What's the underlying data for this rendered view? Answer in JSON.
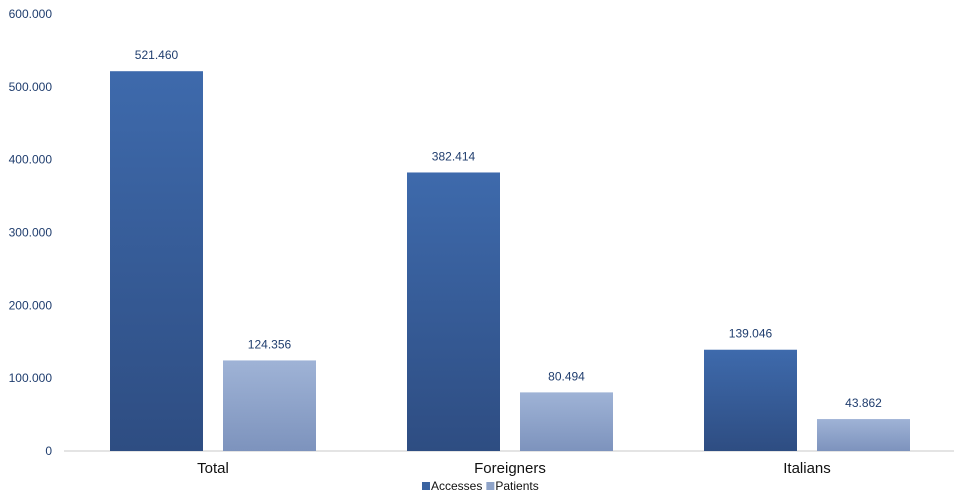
{
  "chart_data": {
    "type": "bar",
    "title": "",
    "xlabel": "",
    "ylabel": "",
    "categories": [
      "Total",
      "Foreigners",
      "Italians"
    ],
    "series": [
      {
        "name": "Accesses",
        "values": [
          521460,
          382414,
          139046
        ],
        "value_labels": [
          "521.460",
          "382.414",
          "139.046"
        ],
        "color": "#3a63a0"
      },
      {
        "name": "Patients",
        "values": [
          124356,
          80494,
          43862
        ],
        "value_labels": [
          "124.356",
          "80.494",
          "43.862"
        ],
        "color": "#8ea3c8"
      }
    ],
    "ylim": [
      0,
      600000
    ],
    "yticks": [
      0,
      100000,
      200000,
      300000,
      400000,
      500000,
      600000
    ],
    "ytick_labels": [
      "0",
      "100.000",
      "200.000",
      "300.000",
      "400.000",
      "500.000",
      "600.000"
    ],
    "grid": false,
    "legend_position": "bottom"
  }
}
